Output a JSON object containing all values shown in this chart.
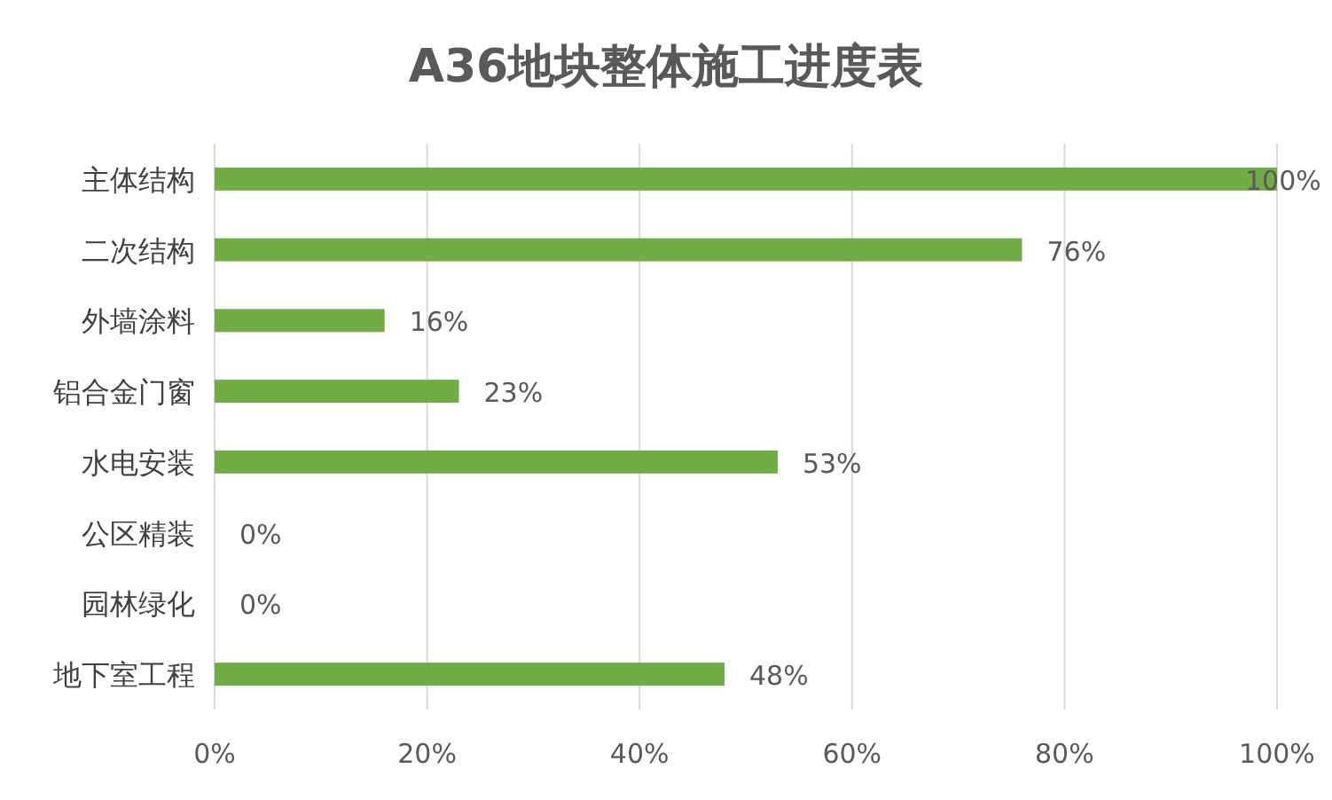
{
  "chart_data": {
    "type": "bar",
    "orientation": "horizontal",
    "title": "A36地块整体施工进度表",
    "categories": [
      "主体结构",
      "二次结构",
      "外墙涂料",
      "铝合金门窗",
      "水电安装",
      "公区精装",
      "园林绿化",
      "地下室工程"
    ],
    "values": [
      100,
      76,
      16,
      23,
      53,
      0,
      0,
      48
    ],
    "value_labels": [
      "100%",
      "76%",
      "16%",
      "23%",
      "53%",
      "0%",
      "0%",
      "48%"
    ],
    "color": "#70ad47",
    "xlim": [
      0,
      100
    ],
    "xticks": [
      {
        "value": 0,
        "label": "0%"
      },
      {
        "value": 20,
        "label": "20%"
      },
      {
        "value": 40,
        "label": "40%"
      },
      {
        "value": 60,
        "label": "60%"
      },
      {
        "value": 80,
        "label": "80%"
      },
      {
        "value": 100,
        "label": "100%"
      }
    ],
    "grid": "x"
  }
}
